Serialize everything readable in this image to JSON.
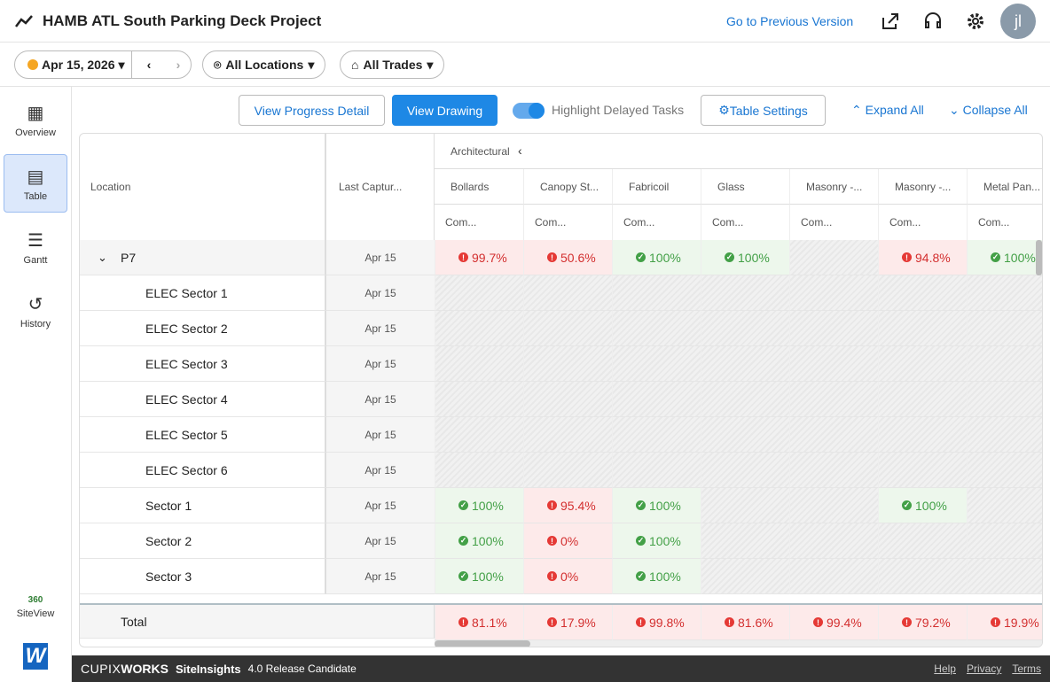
{
  "header": {
    "title": "HAMB ATL South Parking Deck Project",
    "previous_version": "Go to Previous Version",
    "avatar": "jl"
  },
  "filters": {
    "date": "Apr 15, 2026",
    "locations": "All Locations",
    "trades": "All Trades"
  },
  "sidebar": {
    "items": [
      "Overview",
      "Table",
      "Gantt",
      "History"
    ],
    "siteview_badge": "360",
    "siteview": "SiteView",
    "logo": "W"
  },
  "actions": {
    "progress": "View Progress Detail",
    "drawing": "View Drawing",
    "highlight": "Highlight Delayed Tasks",
    "settings": "Table Settings",
    "expand": "Expand All",
    "collapse": "Collapse All"
  },
  "table": {
    "group": "Architectural",
    "location_header": "Location",
    "capture_header": "Last Captur...",
    "sub_header": "Com...",
    "trades": [
      "Bollards",
      "Canopy St...",
      "Fabricoil",
      "Glass",
      "Masonry -...",
      "Masonry -...",
      "Metal Pan..."
    ],
    "rows": [
      {
        "name": "P7",
        "date": "Apr 15",
        "level": 0,
        "cells": [
          {
            "text": "99.7%",
            "delayed": true
          },
          {
            "text": "50.6%",
            "delayed": true
          },
          {
            "text": "100%",
            "delayed": false
          },
          {
            "text": "100%",
            "delayed": false
          },
          null,
          {
            "text": "94.8%",
            "delayed": true
          },
          {
            "text": "100%",
            "delayed": false
          }
        ]
      },
      {
        "name": "ELEC Sector 1",
        "date": "Apr 15",
        "level": 1,
        "cells": [
          null,
          null,
          null,
          null,
          null,
          null,
          null
        ]
      },
      {
        "name": "ELEC Sector 2",
        "date": "Apr 15",
        "level": 1,
        "cells": [
          null,
          null,
          null,
          null,
          null,
          null,
          null
        ]
      },
      {
        "name": "ELEC Sector 3",
        "date": "Apr 15",
        "level": 1,
        "cells": [
          null,
          null,
          null,
          null,
          null,
          null,
          null
        ]
      },
      {
        "name": "ELEC Sector 4",
        "date": "Apr 15",
        "level": 1,
        "cells": [
          null,
          null,
          null,
          null,
          null,
          null,
          null
        ]
      },
      {
        "name": "ELEC Sector 5",
        "date": "Apr 15",
        "level": 1,
        "cells": [
          null,
          null,
          null,
          null,
          null,
          null,
          null
        ]
      },
      {
        "name": "ELEC Sector 6",
        "date": "Apr 15",
        "level": 1,
        "cells": [
          null,
          null,
          null,
          null,
          null,
          null,
          null
        ]
      },
      {
        "name": "Sector 1",
        "date": "Apr 15",
        "level": 1,
        "cells": [
          {
            "text": "100%",
            "delayed": false
          },
          {
            "text": "95.4%",
            "delayed": true
          },
          {
            "text": "100%",
            "delayed": false
          },
          null,
          null,
          {
            "text": "100%",
            "delayed": false
          },
          null
        ]
      },
      {
        "name": "Sector 2",
        "date": "Apr 15",
        "level": 1,
        "cells": [
          {
            "text": "100%",
            "delayed": false
          },
          {
            "text": "0%",
            "delayed": true
          },
          {
            "text": "100%",
            "delayed": false
          },
          null,
          null,
          null,
          null
        ]
      },
      {
        "name": "Sector 3",
        "date": "Apr 15",
        "level": 1,
        "cells": [
          {
            "text": "100%",
            "delayed": false
          },
          {
            "text": "0%",
            "delayed": true
          },
          {
            "text": "100%",
            "delayed": false
          },
          null,
          null,
          null,
          null
        ]
      }
    ],
    "total": {
      "name": "Total",
      "cells": [
        {
          "text": "81.1%",
          "delayed": true
        },
        {
          "text": "17.9%",
          "delayed": true
        },
        {
          "text": "99.8%",
          "delayed": true
        },
        {
          "text": "81.6%",
          "delayed": true
        },
        {
          "text": "99.4%",
          "delayed": true
        },
        {
          "text": "79.2%",
          "delayed": true
        },
        {
          "text": "19.9%",
          "delayed": true
        }
      ]
    }
  },
  "footer": {
    "brand": "CUPIX",
    "brand_bold": "WORKS",
    "product": "SiteInsights",
    "version": "4.0 Release Candidate",
    "links": [
      "Help",
      "Privacy",
      "Terms"
    ]
  }
}
